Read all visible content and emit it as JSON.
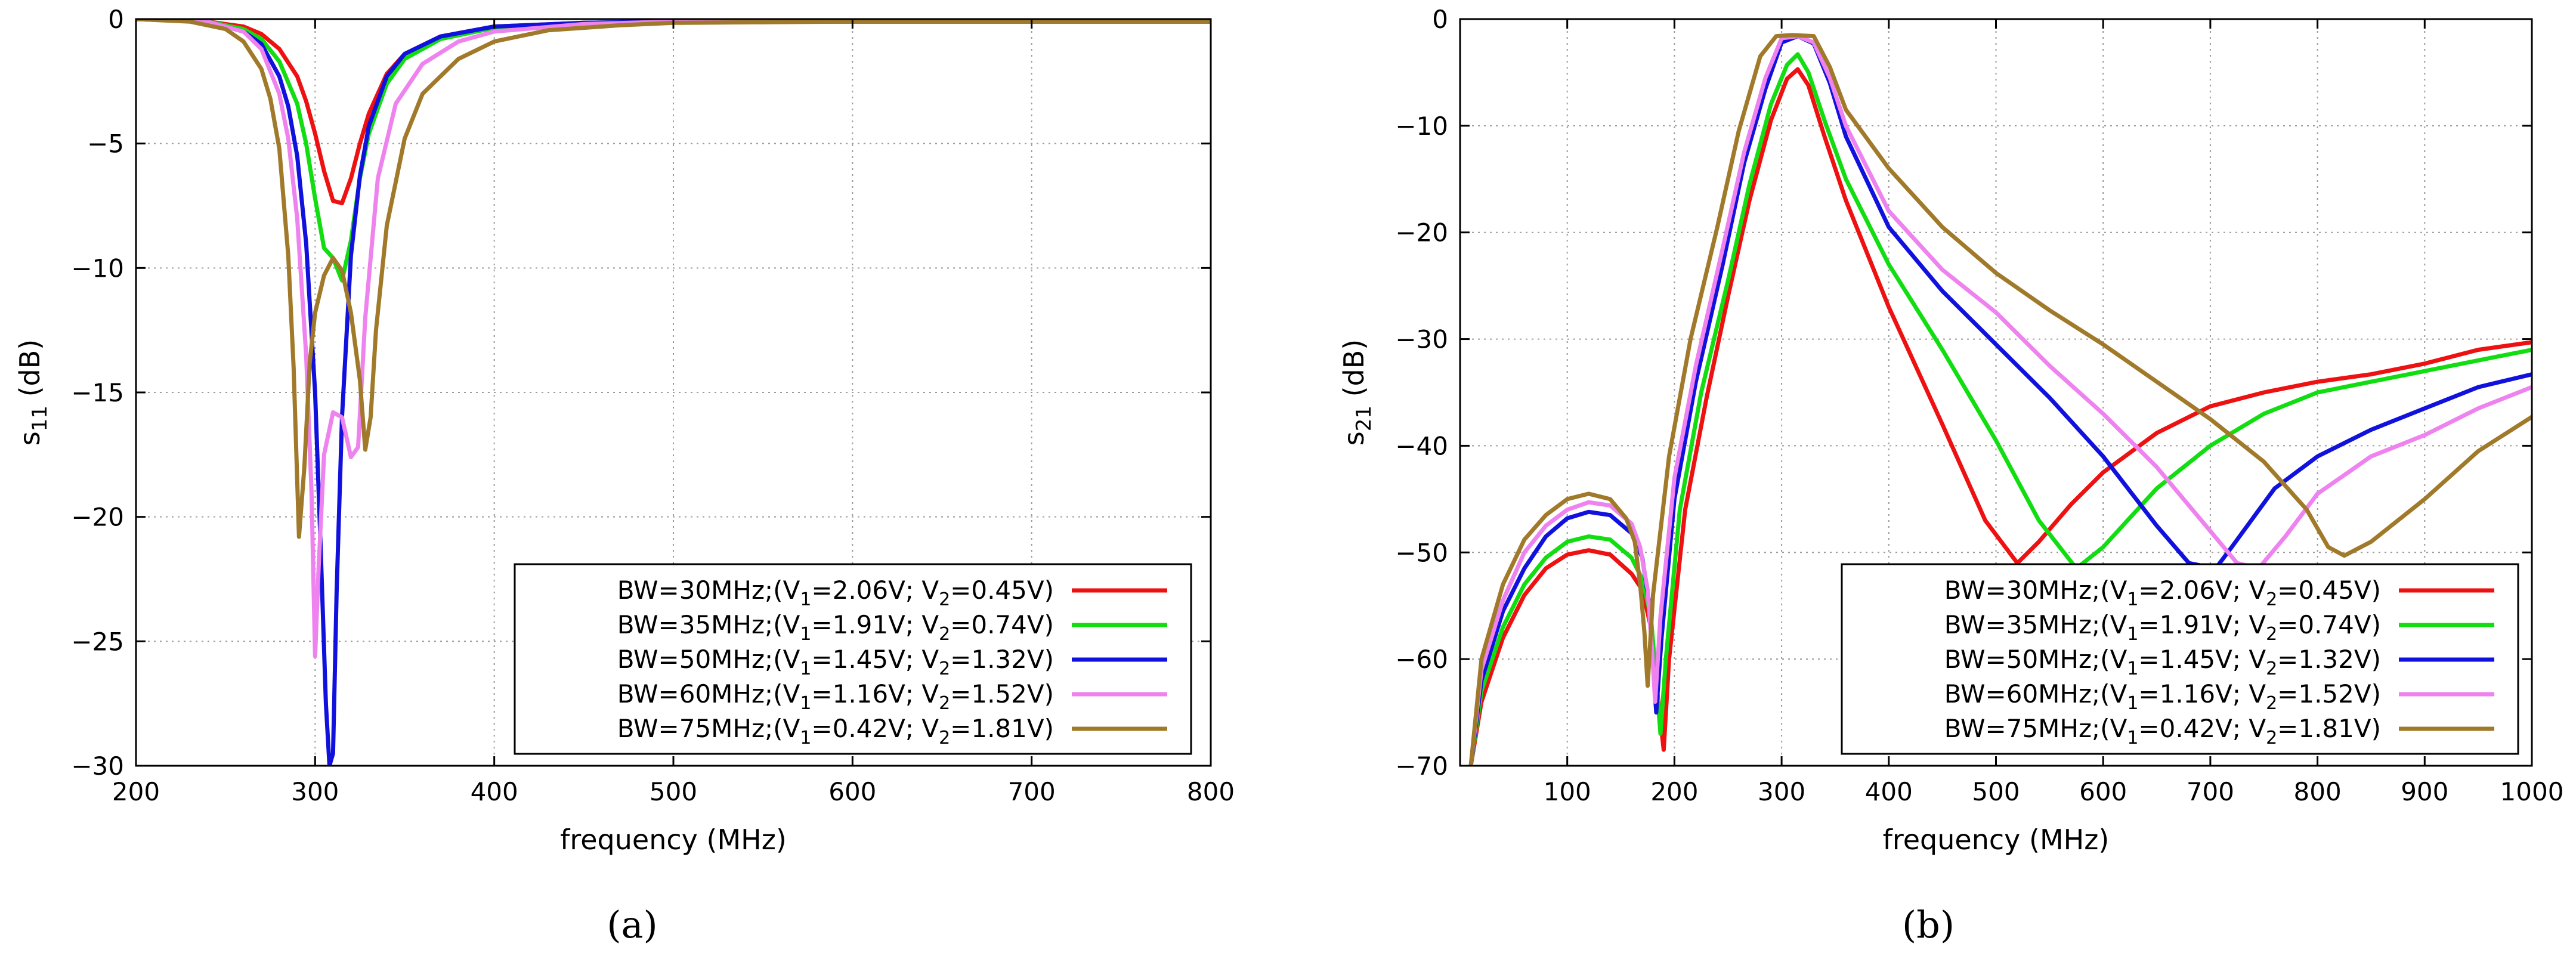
{
  "chart_data": [
    {
      "type": "line",
      "panel_label": "(a)",
      "xlabel": "frequency  (MHz)",
      "ylabel_main": "s",
      "ylabel_sub": "11",
      "ylabel_unit": " (dB)",
      "xlim": [
        200,
        800
      ],
      "ylim": [
        -30,
        0
      ],
      "xticks": [
        200,
        300,
        400,
        500,
        600,
        700,
        800
      ],
      "yticks": [
        0,
        -5,
        -10,
        -15,
        -20,
        -25,
        -30
      ],
      "grid": true,
      "legend_position": "bottom-right",
      "series": [
        {
          "name": "BW=30MHz;(V1=2.06V; V2=0.45V)",
          "legend": {
            "bw": "BW=30MHz;(V",
            "v1": "=2.06V; V",
            "v2": "=0.45V)"
          },
          "color": "#ee1111",
          "x": [
            200,
            240,
            260,
            270,
            280,
            290,
            295,
            300,
            305,
            310,
            315,
            320,
            325,
            330,
            340,
            350,
            370,
            400,
            450,
            500,
            600,
            700,
            800
          ],
          "y": [
            0,
            -0.1,
            -0.3,
            -0.6,
            -1.2,
            -2.3,
            -3.3,
            -4.6,
            -6.1,
            -7.3,
            -7.4,
            -6.4,
            -5.0,
            -3.8,
            -2.2,
            -1.4,
            -0.7,
            -0.3,
            -0.15,
            -0.1,
            -0.1,
            -0.1,
            -0.1
          ]
        },
        {
          "name": "BW=35MHz;(V1=1.91V; V2=0.74V)",
          "legend": {
            "bw": "BW=35MHz;(V",
            "v1": "=1.91V; V",
            "v2": "=0.74V)"
          },
          "color": "#11dd11",
          "x": [
            200,
            240,
            260,
            270,
            280,
            290,
            295,
            300,
            305,
            310,
            315,
            320,
            325,
            330,
            340,
            350,
            370,
            400,
            450,
            500,
            600,
            700,
            800
          ],
          "y": [
            0,
            -0.1,
            -0.4,
            -0.8,
            -1.7,
            -3.4,
            -5.0,
            -7.2,
            -9.2,
            -9.6,
            -10.5,
            -8.9,
            -6.4,
            -4.6,
            -2.6,
            -1.6,
            -0.8,
            -0.35,
            -0.15,
            -0.1,
            -0.1,
            -0.1,
            -0.1
          ]
        },
        {
          "name": "BW=50MHz;(V1=1.45V; V2=1.32V)",
          "legend": {
            "bw": "BW=50MHz;(V",
            "v1": "=1.45V; V",
            "v2": "=1.32V)"
          },
          "color": "#1111dd",
          "x": [
            200,
            240,
            260,
            270,
            280,
            285,
            290,
            295,
            300,
            303,
            306,
            308,
            310,
            312,
            315,
            320,
            325,
            330,
            340,
            350,
            370,
            400,
            450,
            500,
            600,
            700,
            800
          ],
          "y": [
            0,
            -0.1,
            -0.5,
            -1.0,
            -2.3,
            -3.5,
            -5.5,
            -9.0,
            -15.0,
            -21.0,
            -27.5,
            -30,
            -29.5,
            -23.0,
            -16.0,
            -9.5,
            -6.3,
            -4.3,
            -2.3,
            -1.4,
            -0.7,
            -0.3,
            -0.15,
            -0.1,
            -0.1,
            -0.1,
            -0.1
          ]
        },
        {
          "name": "BW=60MHz;(V1=1.16V; V2=1.52V)",
          "legend": {
            "bw": "BW=60MHz;(V",
            "v1": "=1.16V; V",
            "v2": "=1.52V)"
          },
          "color": "#ee82ee",
          "x": [
            200,
            240,
            260,
            270,
            280,
            285,
            290,
            295,
            298,
            300,
            302,
            305,
            310,
            315,
            320,
            324,
            328,
            335,
            345,
            360,
            380,
            400,
            450,
            500,
            600,
            700,
            800
          ],
          "y": [
            0,
            -0.1,
            -0.5,
            -1.2,
            -3.0,
            -4.8,
            -8.0,
            -13.5,
            -19.0,
            -25.6,
            -22.0,
            -17.5,
            -15.8,
            -16.0,
            -17.6,
            -17.2,
            -12.0,
            -6.4,
            -3.4,
            -1.8,
            -0.9,
            -0.5,
            -0.2,
            -0.1,
            -0.1,
            -0.1,
            -0.1
          ]
        },
        {
          "name": "BW=75MHz;(V1=0.42V; V2=1.81V)",
          "legend": {
            "bw": "BW=75MHz;(V",
            "v1": "=0.42V; V",
            "v2": "=1.81V)"
          },
          "color": "#a07a2a",
          "x": [
            200,
            230,
            250,
            260,
            270,
            275,
            280,
            285,
            288,
            291,
            294,
            297,
            300,
            305,
            310,
            315,
            320,
            325,
            328,
            331,
            334,
            340,
            350,
            360,
            380,
            400,
            430,
            470,
            500,
            600,
            700,
            800
          ],
          "y": [
            0,
            -0.1,
            -0.4,
            -0.9,
            -2.0,
            -3.2,
            -5.2,
            -9.5,
            -14.0,
            -20.8,
            -18.0,
            -13.8,
            -11.8,
            -10.3,
            -9.6,
            -10.1,
            -11.8,
            -14.5,
            -17.3,
            -16.0,
            -12.5,
            -8.3,
            -4.8,
            -3.0,
            -1.6,
            -0.9,
            -0.45,
            -0.25,
            -0.15,
            -0.1,
            -0.1,
            -0.1
          ]
        }
      ]
    },
    {
      "type": "line",
      "panel_label": "(b)",
      "xlabel": "frequency  (MHz)",
      "ylabel_main": "s",
      "ylabel_sub": "21",
      "ylabel_unit": " (dB)",
      "xlim": [
        0,
        1000
      ],
      "ylim": [
        -70,
        0
      ],
      "xticks": [
        100,
        200,
        300,
        400,
        500,
        600,
        700,
        800,
        900,
        1000
      ],
      "yticks": [
        0,
        -10,
        -20,
        -30,
        -40,
        -50,
        -60,
        -70
      ],
      "grid": true,
      "legend_position": "bottom-right",
      "series": [
        {
          "name": "BW=30MHz;(V1=2.06V; V2=0.45V)",
          "legend": {
            "bw": "BW=30MHz;(V",
            "v1": "=2.06V; V",
            "v2": "=0.45V)"
          },
          "color": "#ee1111",
          "x": [
            10,
            20,
            40,
            60,
            80,
            100,
            120,
            140,
            160,
            170,
            178,
            185,
            190,
            195,
            210,
            230,
            250,
            270,
            290,
            305,
            315,
            325,
            340,
            360,
            400,
            450,
            490,
            520,
            540,
            570,
            600,
            650,
            700,
            750,
            800,
            850,
            900,
            950,
            1000
          ],
          "y": [
            -70,
            -64,
            -58,
            -54,
            -51.5,
            -50.2,
            -49.8,
            -50.2,
            -52.0,
            -53.5,
            -57.0,
            -64.0,
            -68.5,
            -60.0,
            -46.0,
            -35.5,
            -26.0,
            -17.0,
            -9.5,
            -5.6,
            -4.7,
            -6.2,
            -11.0,
            -17.0,
            -27.0,
            -38.0,
            -47.0,
            -51.0,
            -49.0,
            -45.5,
            -42.5,
            -38.8,
            -36.3,
            -35.0,
            -34.0,
            -33.3,
            -32.3,
            -31.0,
            -30.3
          ]
        },
        {
          "name": "BW=35MHz;(V1=1.91V; V2=0.74V)",
          "legend": {
            "bw": "BW=35MHz;(V",
            "v1": "=1.91V; V",
            "v2": "=0.74V)"
          },
          "color": "#11dd11",
          "x": [
            10,
            20,
            40,
            60,
            80,
            100,
            120,
            140,
            160,
            170,
            178,
            183,
            187,
            192,
            205,
            225,
            250,
            270,
            290,
            305,
            315,
            325,
            340,
            360,
            400,
            450,
            500,
            540,
            575,
            600,
            650,
            700,
            750,
            800,
            850,
            900,
            950,
            1000
          ],
          "y": [
            -70,
            -63,
            -57,
            -53,
            -50.5,
            -49.0,
            -48.5,
            -48.8,
            -50.5,
            -52.5,
            -56.0,
            -62.0,
            -67.0,
            -60.0,
            -46.0,
            -35.0,
            -24.5,
            -15.5,
            -8.0,
            -4.3,
            -3.3,
            -5.0,
            -9.5,
            -15.0,
            -23.0,
            -31.0,
            -39.5,
            -47.0,
            -51.5,
            -49.5,
            -44.0,
            -40.0,
            -37.0,
            -35.0,
            -34.0,
            -33.0,
            -32.0,
            -31.0
          ]
        },
        {
          "name": "BW=50MHz;(V1=1.45V; V2=1.32V)",
          "legend": {
            "bw": "BW=50MHz;(V",
            "v1": "=1.45V; V",
            "v2": "=1.32V)"
          },
          "color": "#1111dd",
          "x": [
            10,
            20,
            40,
            60,
            80,
            100,
            120,
            140,
            160,
            170,
            176,
            180,
            183,
            188,
            200,
            220,
            245,
            265,
            285,
            300,
            315,
            330,
            345,
            360,
            400,
            450,
            500,
            550,
            600,
            650,
            680,
            705,
            720,
            760,
            800,
            850,
            900,
            950,
            1000
          ],
          "y": [
            -70,
            -62,
            -55.5,
            -51.5,
            -48.5,
            -46.8,
            -46.2,
            -46.5,
            -48.2,
            -50.5,
            -54.5,
            -60.5,
            -65.0,
            -58.0,
            -45.0,
            -34.0,
            -23.0,
            -13.5,
            -6.5,
            -2.2,
            -1.6,
            -2.3,
            -6.0,
            -11.0,
            -19.5,
            -25.5,
            -30.5,
            -35.5,
            -41.0,
            -47.5,
            -51.0,
            -51.5,
            -49.5,
            -44.0,
            -41.0,
            -38.5,
            -36.5,
            -34.5,
            -33.3
          ]
        },
        {
          "name": "BW=60MHz;(V1=1.16V; V2=1.52V)",
          "legend": {
            "bw": "BW=60MHz;(V",
            "v1": "=1.16V; V",
            "v2": "=1.52V)"
          },
          "color": "#ee82ee",
          "x": [
            10,
            20,
            40,
            60,
            80,
            100,
            120,
            140,
            160,
            168,
            175,
            179,
            182,
            187,
            200,
            220,
            245,
            265,
            285,
            300,
            315,
            330,
            345,
            360,
            400,
            450,
            500,
            550,
            600,
            650,
            700,
            725,
            745,
            770,
            800,
            850,
            900,
            950,
            1000
          ],
          "y": [
            -70,
            -61,
            -54.5,
            -50.0,
            -47.5,
            -46.0,
            -45.3,
            -45.6,
            -47.3,
            -49.5,
            -53.5,
            -59.0,
            -64.0,
            -56.0,
            -43.0,
            -32.5,
            -21.5,
            -12.5,
            -5.5,
            -1.8,
            -1.6,
            -2.2,
            -5.5,
            -10.0,
            -18.0,
            -23.5,
            -27.5,
            -32.5,
            -37.0,
            -42.0,
            -48.0,
            -51.0,
            -51.5,
            -48.5,
            -44.5,
            -41.0,
            -39.0,
            -36.5,
            -34.5
          ]
        },
        {
          "name": "BW=75MHz;(V1=0.42V; V2=1.81V)",
          "legend": {
            "bw": "BW=75MHz;(V",
            "v1": "=0.42V; V",
            "v2": "=1.81V)"
          },
          "color": "#a07a2a",
          "x": [
            10,
            20,
            40,
            60,
            80,
            100,
            120,
            140,
            155,
            163,
            168,
            172,
            175,
            180,
            195,
            215,
            240,
            260,
            280,
            295,
            310,
            330,
            345,
            360,
            400,
            450,
            500,
            550,
            600,
            650,
            700,
            750,
            790,
            810,
            825,
            850,
            900,
            950,
            1000
          ],
          "y": [
            -70,
            -60,
            -53,
            -48.8,
            -46.5,
            -45.0,
            -44.5,
            -45.0,
            -46.8,
            -49.0,
            -53.0,
            -57.5,
            -62.5,
            -54.0,
            -41.0,
            -30.0,
            -19.5,
            -10.5,
            -3.5,
            -1.6,
            -1.5,
            -1.6,
            -4.5,
            -8.5,
            -14.0,
            -19.5,
            -23.8,
            -27.3,
            -30.5,
            -34.0,
            -37.5,
            -41.5,
            -46.0,
            -49.5,
            -50.3,
            -49.0,
            -45.0,
            -40.5,
            -37.3
          ]
        }
      ]
    }
  ]
}
